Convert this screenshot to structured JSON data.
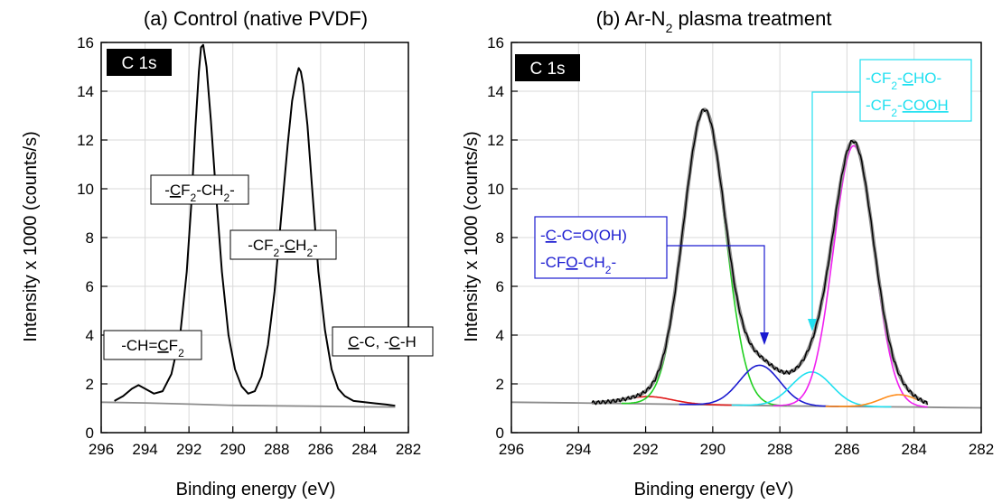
{
  "chart_data": [
    {
      "type": "line",
      "panel_title": "(a) Control (native PVDF)",
      "xlabel": "Binding energy (eV)",
      "ylabel": "Intensity x 1000 (counts/s)",
      "xlim": [
        296,
        282
      ],
      "ylim": [
        0,
        16
      ],
      "x_ticks": [
        296,
        294,
        292,
        290,
        288,
        286,
        284,
        282
      ],
      "y_ticks": [
        0,
        2,
        4,
        6,
        8,
        10,
        12,
        14,
        16
      ],
      "badge": "C 1s",
      "colors": {
        "spectrum": "#000000",
        "background": "#8c8c8c"
      },
      "series": [
        {
          "role": "spectrum",
          "color": "#000000",
          "x": [
            295.4,
            295.0,
            294.6,
            294.3,
            294.0,
            293.6,
            293.2,
            292.8,
            292.4,
            292.1,
            291.9,
            291.7,
            291.55,
            291.45,
            291.35,
            291.2,
            291.0,
            290.8,
            290.5,
            290.2,
            289.9,
            289.6,
            289.3,
            289.0,
            288.7,
            288.4,
            288.1,
            287.8,
            287.5,
            287.3,
            287.1,
            287.0,
            286.9,
            286.8,
            286.6,
            286.4,
            286.1,
            285.8,
            285.5,
            285.2,
            284.9,
            284.5,
            284.0,
            283.5,
            283.0,
            282.6
          ],
          "y": [
            1.3,
            1.5,
            1.8,
            1.95,
            1.8,
            1.6,
            1.7,
            2.4,
            4.0,
            6.6,
            9.3,
            12.6,
            14.8,
            15.8,
            15.9,
            15.0,
            12.8,
            10.2,
            6.6,
            4.0,
            2.6,
            1.9,
            1.6,
            1.7,
            2.3,
            3.6,
            5.8,
            8.8,
            11.8,
            13.6,
            14.6,
            14.95,
            14.8,
            14.3,
            12.6,
            10.2,
            6.6,
            4.2,
            2.6,
            1.8,
            1.5,
            1.3,
            1.25,
            1.2,
            1.15,
            1.1
          ]
        },
        {
          "role": "background",
          "color": "#8c8c8c",
          "x": [
            296,
            294,
            292,
            290,
            288,
            286,
            284,
            282.6
          ],
          "y": [
            1.25,
            1.22,
            1.17,
            1.12,
            1.1,
            1.08,
            1.06,
            1.05
          ]
        }
      ],
      "annotations": [
        {
          "parts": [
            [
              "-",
              false
            ],
            [
              "C",
              true
            ],
            [
              "F",
              false
            ],
            [
              "2",
              false,
              "sub"
            ],
            [
              "-CH",
              false
            ],
            [
              "2",
              false,
              "sub"
            ],
            [
              "-",
              false
            ]
          ]
        },
        {
          "parts": [
            [
              "-CF",
              false
            ],
            [
              "2",
              false,
              "sub"
            ],
            [
              "-",
              false
            ],
            [
              "C",
              true
            ],
            [
              "H",
              false
            ],
            [
              "2",
              false,
              "sub"
            ],
            [
              "-",
              false
            ]
          ]
        },
        {
          "parts": [
            [
              "-CH=",
              false
            ],
            [
              "C",
              true
            ],
            [
              "F",
              false
            ],
            [
              "2",
              false,
              "sub"
            ]
          ]
        },
        {
          "parts": [
            [
              "C",
              true
            ],
            [
              "-C, -",
              false
            ],
            [
              "C",
              true
            ],
            [
              "-H",
              false
            ]
          ]
        }
      ]
    },
    {
      "type": "line",
      "panel_title": "(b) Ar-N₂ plasma treatment",
      "xlabel": "Binding energy (eV)",
      "ylabel": "Intensity x 1000 (counts/s)",
      "xlim": [
        296,
        282
      ],
      "ylim": [
        0,
        16
      ],
      "x_ticks": [
        296,
        294,
        292,
        290,
        288,
        286,
        284,
        282
      ],
      "y_ticks": [
        0,
        2,
        4,
        6,
        8,
        10,
        12,
        14,
        16
      ],
      "badge": "C 1s",
      "colors": {
        "spectrum": "#000000",
        "fit_envelope": "#8c8c8c",
        "red": "#e01818",
        "green": "#20d020",
        "blue": "#1a1ad0",
        "cyan": "#20e0f0",
        "magenta": "#f020f0",
        "orange": "#ff8c1a"
      },
      "series": [
        {
          "role": "background",
          "color": "#8c8c8c",
          "x": [
            296,
            294,
            292,
            290,
            288,
            286,
            284,
            283,
            282
          ],
          "y": [
            1.25,
            1.22,
            1.18,
            1.14,
            1.1,
            1.07,
            1.05,
            1.03,
            1.02
          ]
        },
        {
          "role": "peak",
          "color": "#e01818",
          "center": 291.9,
          "height": 0.3,
          "width": 0.7
        },
        {
          "role": "peak",
          "color": "#20d020",
          "center": 290.25,
          "height": 12.05,
          "width": 0.62
        },
        {
          "role": "peak",
          "color": "#1a1ad0",
          "center": 288.6,
          "height": 1.65,
          "width": 0.6
        },
        {
          "role": "peak",
          "color": "#20e0f0",
          "center": 287.05,
          "height": 1.4,
          "width": 0.6
        },
        {
          "role": "peak",
          "color": "#f020f0",
          "center": 285.8,
          "height": 10.7,
          "width": 0.6
        },
        {
          "role": "peak",
          "color": "#ff8c1a",
          "center": 284.45,
          "height": 0.5,
          "width": 0.55
        },
        {
          "role": "envelope",
          "color": "#8c8c8c"
        },
        {
          "role": "spectrum",
          "color": "#000000"
        }
      ],
      "annotations": [
        {
          "color": "#1a1ad0",
          "parts": [
            [
              "-",
              false
            ],
            [
              "C",
              true
            ],
            [
              "-C=O(OH)",
              false
            ]
          ]
        },
        {
          "color": "#1a1ad0",
          "parts": [
            [
              "-CF",
              false
            ],
            [
              "O",
              true
            ],
            [
              "-CH",
              false
            ],
            [
              "2",
              false,
              "sub"
            ],
            [
              "-",
              false
            ]
          ]
        },
        {
          "color": "#20e0f0",
          "parts": [
            [
              "-CF",
              false
            ],
            [
              "2",
              false,
              "sub"
            ],
            [
              "-",
              false
            ],
            [
              "C",
              true
            ],
            [
              "HO-",
              false
            ]
          ]
        },
        {
          "color": "#20e0f0",
          "parts": [
            [
              "-CF",
              false
            ],
            [
              "2",
              false,
              "sub"
            ],
            [
              "-",
              false
            ],
            [
              "COOH",
              true
            ]
          ]
        }
      ]
    }
  ]
}
